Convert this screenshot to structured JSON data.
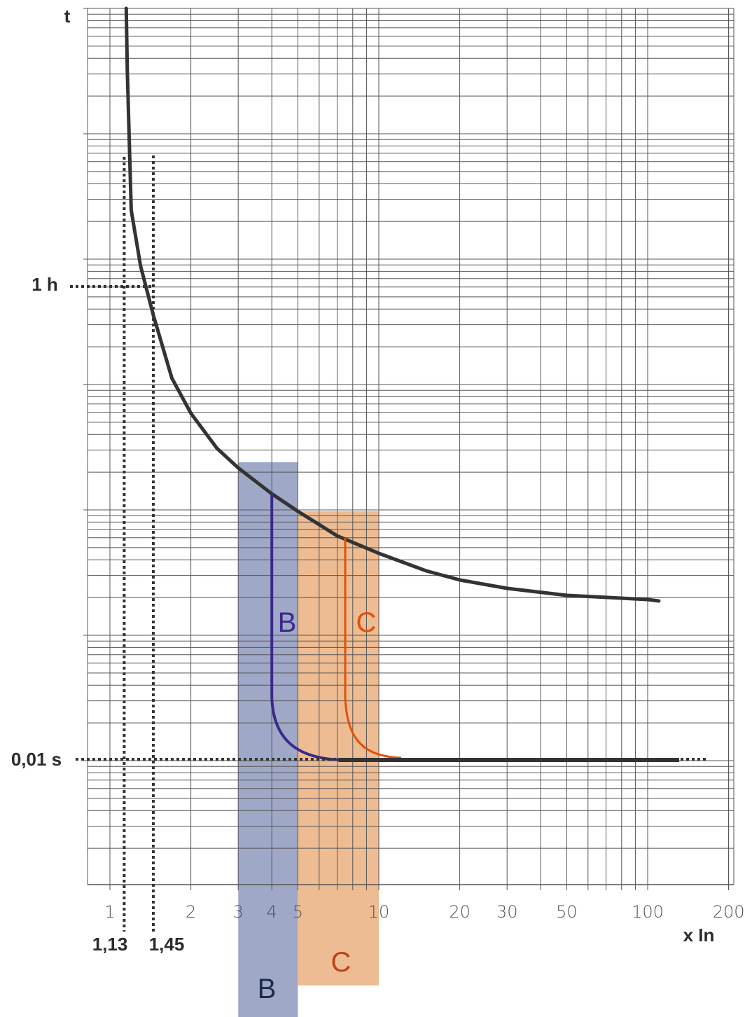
{
  "chart_data": {
    "type": "line",
    "title": "",
    "ylabel": "t",
    "xlabel": "x In",
    "x_scale": "log",
    "xlim": [
      1,
      200
    ],
    "y_scale": "log",
    "grid": true,
    "x_ticks": [
      "1",
      "2",
      "3",
      "4",
      "5",
      "10",
      "20",
      "30",
      "50",
      "100",
      "200"
    ],
    "y_markers": [
      {
        "label": "1 h"
      },
      {
        "label": "0,01 s"
      }
    ],
    "x_markers": [
      {
        "label": "1,13",
        "x": 1.13
      },
      {
        "label": "1,45",
        "x": 1.45
      }
    ],
    "zones": [
      {
        "name": "B",
        "x_range": [
          3,
          5
        ],
        "label": "B",
        "curve_label": "B",
        "color": "#a0a8c8",
        "curve_color": "#3a2a88",
        "trip_x": 4
      },
      {
        "name": "C",
        "x_range": [
          5,
          10
        ],
        "label": "C",
        "curve_label": "C",
        "color": "#eebc92",
        "curve_color": "#e2500e",
        "trip_x": 7.5
      }
    ],
    "series": [
      {
        "name": "",
        "color": "#333333",
        "points_x": [
          1.15,
          1.16,
          1.2,
          1.3,
          1.45,
          1.7,
          2,
          2.5,
          3,
          4,
          5,
          7,
          10,
          15,
          20,
          30,
          50,
          100,
          110
        ]
      }
    ]
  }
}
